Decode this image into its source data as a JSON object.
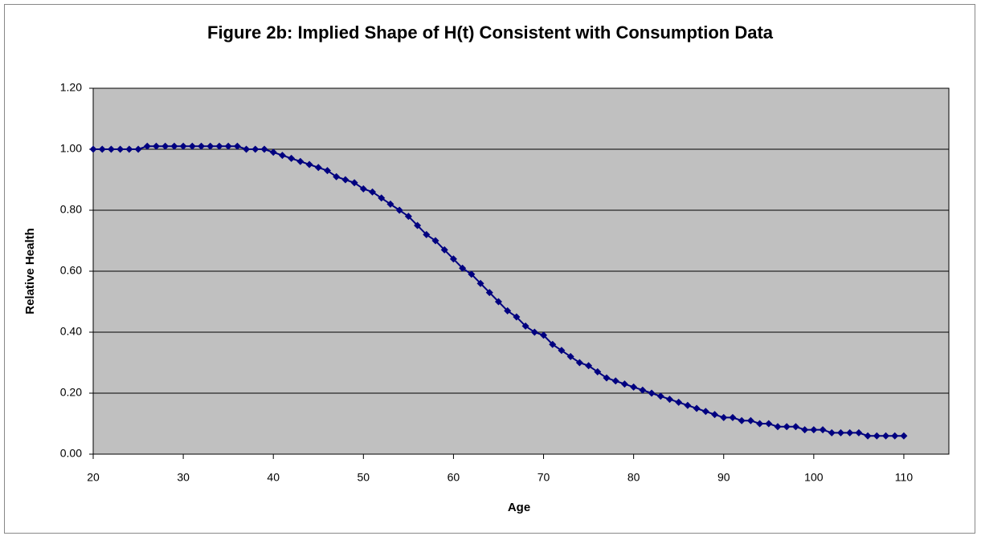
{
  "chart_data": {
    "type": "line",
    "title": "Figure 2b: Implied Shape of H(t) Consistent with Consumption Data",
    "x_label": "Age",
    "y_label": "Relative Health",
    "x": [
      20,
      21,
      22,
      23,
      24,
      25,
      26,
      27,
      28,
      29,
      30,
      31,
      32,
      33,
      34,
      35,
      36,
      37,
      38,
      39,
      40,
      41,
      42,
      43,
      44,
      45,
      46,
      47,
      48,
      49,
      50,
      51,
      52,
      53,
      54,
      55,
      56,
      57,
      58,
      59,
      60,
      61,
      62,
      63,
      64,
      65,
      66,
      67,
      68,
      69,
      70,
      71,
      72,
      73,
      74,
      75,
      76,
      77,
      78,
      79,
      80,
      81,
      82,
      83,
      84,
      85,
      86,
      87,
      88,
      89,
      90,
      91,
      92,
      93,
      94,
      95,
      96,
      97,
      98,
      99,
      100,
      101,
      102,
      103,
      104,
      105,
      106,
      107,
      108,
      109,
      110
    ],
    "series": [
      {
        "name": "H(t)",
        "color": "#000080",
        "values": [
          1.0,
          1.0,
          1.0,
          1.0,
          1.0,
          1.0,
          1.01,
          1.01,
          1.01,
          1.01,
          1.01,
          1.01,
          1.01,
          1.01,
          1.01,
          1.01,
          1.01,
          1.0,
          1.0,
          1.0,
          0.99,
          0.98,
          0.97,
          0.96,
          0.95,
          0.94,
          0.93,
          0.91,
          0.9,
          0.89,
          0.87,
          0.86,
          0.84,
          0.82,
          0.8,
          0.78,
          0.75,
          0.72,
          0.7,
          0.67,
          0.64,
          0.61,
          0.59,
          0.56,
          0.53,
          0.5,
          0.47,
          0.45,
          0.42,
          0.4,
          0.39,
          0.36,
          0.34,
          0.32,
          0.3,
          0.29,
          0.27,
          0.25,
          0.24,
          0.23,
          0.22,
          0.21,
          0.2,
          0.19,
          0.18,
          0.17,
          0.16,
          0.15,
          0.14,
          0.13,
          0.12,
          0.12,
          0.11,
          0.11,
          0.1,
          0.1,
          0.09,
          0.09,
          0.09,
          0.08,
          0.08,
          0.08,
          0.07,
          0.07,
          0.07,
          0.07,
          0.06,
          0.06,
          0.06,
          0.06,
          0.06
        ]
      }
    ],
    "xlim": [
      20,
      115
    ],
    "xticks": [
      20,
      30,
      40,
      50,
      60,
      70,
      80,
      90,
      100,
      110
    ],
    "ylim": [
      0,
      1.2
    ],
    "yticks": [
      {
        "value": 0,
        "label": "0.00"
      },
      {
        "value": 0.2,
        "label": "0.20"
      },
      {
        "value": 0.4,
        "label": "0.40"
      },
      {
        "value": 0.6,
        "label": "0.60"
      },
      {
        "value": 0.8,
        "label": "0.80"
      },
      {
        "value": 1.0,
        "label": "1.00"
      },
      {
        "value": 1.2,
        "label": "1.20"
      }
    ],
    "grid": true,
    "plot_background": "#c0c0c0"
  }
}
